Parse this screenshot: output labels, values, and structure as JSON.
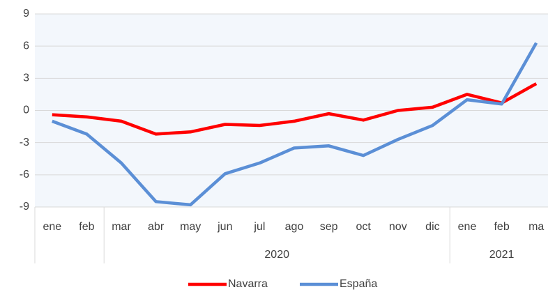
{
  "chart_data": {
    "type": "line",
    "categories": [
      "ene",
      "feb",
      "mar",
      "abr",
      "may",
      "jun",
      "jul",
      "ago",
      "sep",
      "oct",
      "nov",
      "dic",
      "ene",
      "feb",
      "ma"
    ],
    "groups": [
      {
        "label": "2020",
        "span": [
          2,
          11
        ]
      },
      {
        "label": "2021",
        "span": [
          12,
          14
        ]
      }
    ],
    "series": [
      {
        "name": "Navarra",
        "color": "#ff0000",
        "values": [
          -0.4,
          -0.6,
          -1.0,
          -2.2,
          -2.0,
          -1.3,
          -1.4,
          -1.0,
          -0.3,
          -0.9,
          0.0,
          0.3,
          1.5,
          0.7,
          2.5
        ]
      },
      {
        "name": "España",
        "color": "#5b8fd6",
        "values": [
          -1.0,
          -2.2,
          -4.9,
          -8.5,
          -8.8,
          -5.9,
          -4.9,
          -3.5,
          -3.3,
          -4.2,
          -2.7,
          -1.4,
          1.0,
          0.6,
          6.3
        ]
      }
    ],
    "ylim": [
      -9,
      9
    ],
    "yticks": [
      -9,
      -6,
      -3,
      0,
      3,
      6,
      9
    ],
    "grid": true,
    "legend": "bottom"
  }
}
